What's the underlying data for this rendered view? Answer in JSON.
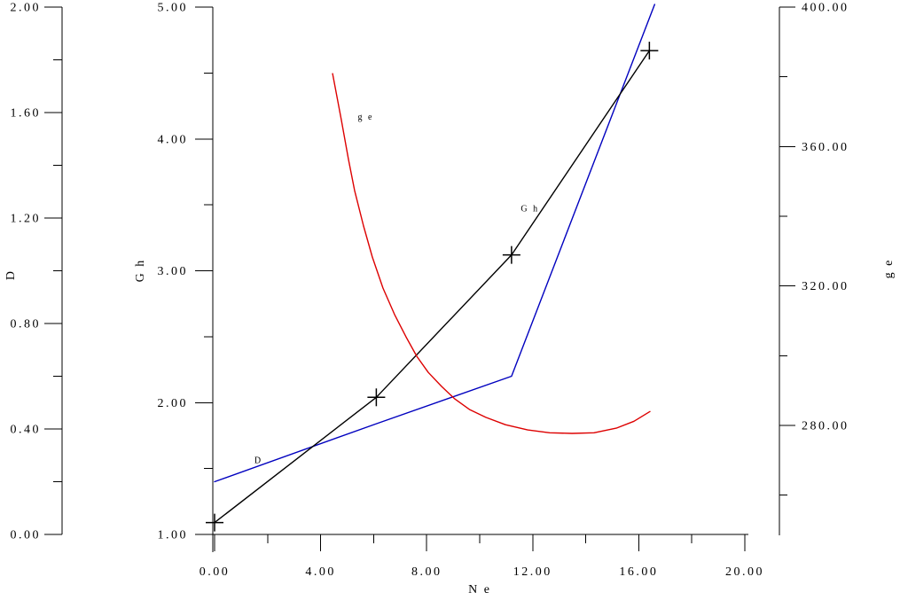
{
  "chart_data": {
    "type": "line",
    "grid": false,
    "legend": "inline-curve-labels",
    "x_axis": {
      "label": "N e",
      "range": [
        0,
        20
      ],
      "major_ticks": [
        0,
        4,
        8,
        12,
        16,
        20
      ],
      "major_tick_labels": [
        "0.00",
        "4.00",
        "8.00",
        "12.00",
        "16.00",
        "20.00"
      ],
      "minor_ticks": [
        2,
        6,
        10,
        14,
        18
      ]
    },
    "y_axes": [
      {
        "id": "D",
        "label": "D",
        "side": "far-left",
        "range": [
          0,
          2
        ],
        "major_ticks": [
          0,
          0.4,
          0.8,
          1.2,
          1.6,
          2.0
        ],
        "major_tick_labels": [
          "0.00",
          "0.40",
          "0.80",
          "1.20",
          "1.60",
          "2.00"
        ],
        "minor_ticks": [
          0.2,
          0.6,
          1.0,
          1.4,
          1.8
        ]
      },
      {
        "id": "Gh",
        "label": "G h",
        "side": "left",
        "range": [
          1,
          5
        ],
        "major_ticks": [
          1,
          2,
          3,
          4,
          5
        ],
        "major_tick_labels": [
          "1.00",
          "2.00",
          "3.00",
          "4.00",
          "5.00"
        ],
        "minor_ticks": [
          1.5,
          2.5,
          3.5,
          4.5
        ]
      },
      {
        "id": "ge",
        "label": "g e",
        "side": "right",
        "range": [
          248.6,
          400
        ],
        "major_ticks": [
          280,
          320,
          360,
          400
        ],
        "major_tick_labels": [
          "280.00",
          "320.00",
          "360.00",
          "400.00"
        ],
        "minor_ticks": [
          260,
          300,
          340,
          380
        ]
      }
    ],
    "series": [
      {
        "name": "D",
        "axis": "D",
        "color": "#0000bf",
        "marker": "none",
        "points": [
          [
            0,
            0.2
          ],
          [
            6.1,
            0.42
          ],
          [
            11.2,
            0.6
          ],
          [
            16.6,
            2.01
          ]
        ]
      },
      {
        "name": "G h",
        "axis": "Gh",
        "color": "#000000",
        "marker": "plus",
        "points": [
          [
            0,
            1.09
          ],
          [
            6.1,
            2.04
          ],
          [
            11.2,
            3.12
          ],
          [
            16.4,
            4.67
          ]
        ]
      },
      {
        "name": "g e",
        "axis": "ge",
        "color": "#dd0000",
        "marker": "none",
        "points": [
          [
            4.45,
            380.9
          ],
          [
            4.78,
            367.7
          ],
          [
            5.05,
            356.3
          ],
          [
            5.28,
            347.4
          ],
          [
            5.62,
            337.2
          ],
          [
            5.95,
            328.3
          ],
          [
            6.35,
            319.4
          ],
          [
            6.79,
            311.8
          ],
          [
            7.22,
            305.4
          ],
          [
            7.63,
            299.8
          ],
          [
            8.06,
            295.2
          ],
          [
            8.56,
            291.2
          ],
          [
            9.06,
            287.6
          ],
          [
            9.63,
            284.5
          ],
          [
            10.23,
            282.3
          ],
          [
            10.97,
            280.2
          ],
          [
            11.81,
            278.7
          ],
          [
            12.64,
            277.9
          ],
          [
            13.48,
            277.7
          ],
          [
            14.31,
            277.9
          ],
          [
            15.15,
            279.2
          ],
          [
            15.82,
            281.2
          ],
          [
            16.42,
            284.0
          ]
        ]
      }
    ],
    "annotations": [
      {
        "text": "g e",
        "axis": "ge",
        "ne": 5.4,
        "value": 367.7
      },
      {
        "text": "G h",
        "axis": "Gh",
        "ne": 11.55,
        "value": 3.45
      },
      {
        "text": "D",
        "axis": "D",
        "ne": 1.5,
        "value": 0.27
      }
    ],
    "colors": {
      "axis": "#000000",
      "background": "#ffffff"
    }
  }
}
